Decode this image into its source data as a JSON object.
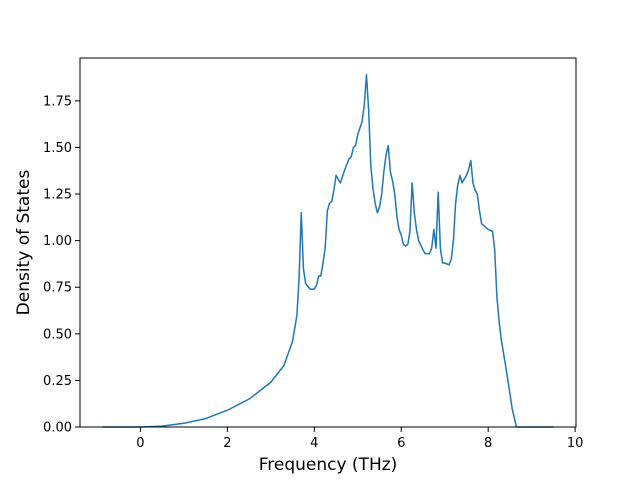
{
  "chart_data": {
    "type": "line",
    "xlabel": "Frequency (THz)",
    "ylabel": "Density of States",
    "color": "#1f77b4",
    "x": [
      -0.87,
      0,
      0.5,
      1,
      1.5,
      2,
      2.5,
      3,
      3.3,
      3.5,
      3.6,
      3.65,
      3.7,
      3.75,
      3.8,
      3.9,
      4.0,
      4.05,
      4.1,
      4.15,
      4.2,
      4.25,
      4.3,
      4.35,
      4.4,
      4.45,
      4.5,
      4.6,
      4.7,
      4.8,
      4.85,
      4.9,
      4.95,
      5.0,
      5.1,
      5.15,
      5.2,
      5.25,
      5.3,
      5.35,
      5.4,
      5.45,
      5.5,
      5.55,
      5.6,
      5.65,
      5.7,
      5.75,
      5.8,
      5.85,
      5.9,
      5.95,
      6.0,
      6.05,
      6.1,
      6.15,
      6.2,
      6.25,
      6.3,
      6.35,
      6.4,
      6.5,
      6.55,
      6.6,
      6.65,
      6.7,
      6.75,
      6.8,
      6.85,
      6.9,
      6.95,
      7.0,
      7.1,
      7.15,
      7.2,
      7.25,
      7.3,
      7.35,
      7.4,
      7.45,
      7.5,
      7.55,
      7.6,
      7.65,
      7.7,
      7.75,
      7.8,
      7.85,
      7.95,
      8.0,
      8.1,
      8.15,
      8.2,
      8.25,
      8.3,
      8.4,
      8.5,
      8.55,
      8.6,
      8.65,
      9.5
    ],
    "values": [
      0,
      0,
      0.005,
      0.02,
      0.045,
      0.09,
      0.15,
      0.24,
      0.33,
      0.46,
      0.6,
      0.8,
      1.15,
      0.85,
      0.77,
      0.74,
      0.74,
      0.76,
      0.81,
      0.81,
      0.88,
      0.96,
      1.16,
      1.2,
      1.21,
      1.27,
      1.35,
      1.31,
      1.38,
      1.44,
      1.45,
      1.5,
      1.51,
      1.57,
      1.64,
      1.73,
      1.89,
      1.7,
      1.4,
      1.28,
      1.2,
      1.15,
      1.18,
      1.25,
      1.37,
      1.46,
      1.51,
      1.37,
      1.32,
      1.25,
      1.13,
      1.06,
      1.03,
      0.98,
      0.97,
      0.98,
      1.05,
      1.31,
      1.15,
      1.06,
      1.0,
      0.95,
      0.93,
      0.93,
      0.93,
      0.96,
      1.06,
      0.96,
      1.26,
      0.96,
      0.88,
      0.88,
      0.87,
      0.9,
      1.0,
      1.2,
      1.3,
      1.35,
      1.31,
      1.33,
      1.35,
      1.38,
      1.43,
      1.31,
      1.27,
      1.25,
      1.16,
      1.09,
      1.07,
      1.06,
      1.05,
      0.95,
      0.7,
      0.57,
      0.47,
      0.33,
      0.18,
      0.1,
      0.05,
      0,
      0
    ],
    "xlim": [
      -1.39,
      10.02
    ],
    "xticks": [
      0,
      2,
      4,
      6,
      8,
      10
    ],
    "ylim": [
      0,
      1.98
    ],
    "yticks": [
      {
        "value": 0,
        "label": "0.00"
      },
      {
        "value": 0.25,
        "label": "0.25"
      },
      {
        "value": 0.5,
        "label": "0.50"
      },
      {
        "value": 0.75,
        "label": "0.75"
      },
      {
        "value": 1,
        "label": "1.00"
      },
      {
        "value": 1.25,
        "label": "1.25"
      },
      {
        "value": 1.5,
        "label": "1.50"
      },
      {
        "value": 1.75,
        "label": "1.75"
      }
    ]
  }
}
